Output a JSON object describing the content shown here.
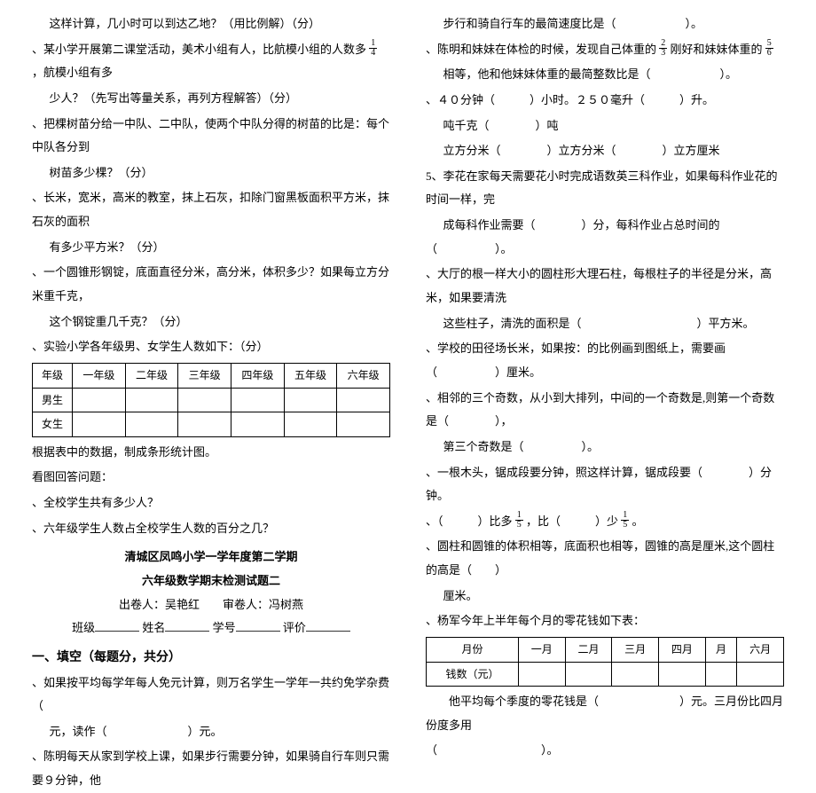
{
  "left": {
    "p1": "这样计算，几小时可以到达乙地？（用比例解）（分）",
    "p2a": "、某小学开展第二课堂活动，美术小组有人，比航模小组的人数多",
    "p2b": "，航模小组有多",
    "p2c": "少人？（先写出等量关系，再列方程解答）（分）",
    "p3a": "、把棵树苗分给一中队、二中队，使两个中队分得的树苗的比是：每个中队各分到",
    "p3b": "树苗多少棵？（分）",
    "p4a": "、长米，宽米，高米的教室，抹上石灰，扣除门窗黑板面积平方米，抹石灰的面积",
    "p4b": "有多少平方米？（分）",
    "p5a": "、一个圆锥形钢锭，底面直径分米，高分米，体积多少？如果每立方分米重千克，",
    "p5b": "这个钢锭重几千克？（分）",
    "p6": "、实验小学各年级男、女学生人数如下：（分）",
    "t1": {
      "h": [
        "年级",
        "一年级",
        "二年级",
        "三年级",
        "四年级",
        "五年级",
        "六年级"
      ],
      "r1": "男生",
      "r2": "女生"
    },
    "p7": "根据表中的数据，制成条形统计图。",
    "p8": "看图回答问题：",
    "p9": "、全校学生共有多少人？",
    "p10": "、六年级学生人数占全校学生人数的百分之几？",
    "title1": "清城区凤鸣小学一学年度第二学期",
    "title2": "六年级数学期末检测试题二",
    "title3": "出卷人：吴艳红　　审卷人：冯树燕",
    "title4a": "班级",
    "title4b": "姓名",
    "title4c": "学号",
    "title4d": "评价",
    "section": "一、填空（每题分，共分）",
    "p11a": "、如果按平均每学年每人免元计算，则万名学生一学年一共约免学杂费（",
    "p11b": "元，读作（　　　　　　　）元。",
    "p12": "、陈明每天从家到学校上课，如果步行需要分钟，如果骑自行车则只需要９分钟，他"
  },
  "right": {
    "p1": "步行和骑自行车的最简速度比是（　　　　　　）。",
    "p2a": "、陈明和妹妹在体检的时候，发现自己体重的",
    "p2b": "刚好和妹妹体重的",
    "p2c": "相等，他和他妹妹体重的最简整数比是（　　　　　　）。",
    "p3": "、４０分钟（　　　）小时。２５０毫升（　　　）升。",
    "p4": "吨千克（　　　　）吨",
    "p5": "立方分米（　　　　）立方分米（　　　　）立方厘米",
    "p6a": "5、李花在家每天需要花小时完成语数英三科作业，如果每科作业花的时间一样，完",
    "p6b": "成每科作业需要（　　　　）分，每科作业占总时间的（　　　　　）。",
    "p7a": "、大厅的根一样大小的圆柱形大理石柱，每根柱子的半径是分米，高米，如果要清洗",
    "p7b": "这些柱子，清洗的面积是（　　　　　　　　　　）平方米。",
    "p8": "、学校的田径场长米，如果按：的比例画到图纸上，需要画（　　　　　）厘米。",
    "p9a": "、相邻的三个奇数，从小到大排列，中间的一个奇数是,则第一个奇数是（　　　　），",
    "p9b": "第三个奇数是（　　　　　）。",
    "p10": "、一根木头，锯成段要分钟，照这样计算，锯成段要（　　　　）分钟。",
    "p11a": "、（　　　）比多",
    "p11b": "，比（　　　）少",
    "p11c": "。",
    "p12a": "、圆柱和圆锥的体积相等，底面积也相等，圆锥的高是厘米,这个圆柱的高是（　　）",
    "p12b": "厘米。",
    "p13": "、杨军今年上半年每个月的零花钱如下表：",
    "t2": {
      "h": [
        "月份",
        "一月",
        "二月",
        "三月",
        "四月",
        "月",
        "六月"
      ],
      "r1": "钱数（元）"
    },
    "p14a": "　　他平均每个季度的零花钱是（　　　　　　　）元。三月份比四月份度多用",
    "p14b": "（　　　　　　　　　）。"
  },
  "frac": {
    "f14": {
      "n": "1",
      "d": "4"
    },
    "f23": {
      "n": "2",
      "d": "3"
    },
    "f56": {
      "n": "5",
      "d": "6"
    },
    "f15": {
      "n": "1",
      "d": "5"
    }
  }
}
